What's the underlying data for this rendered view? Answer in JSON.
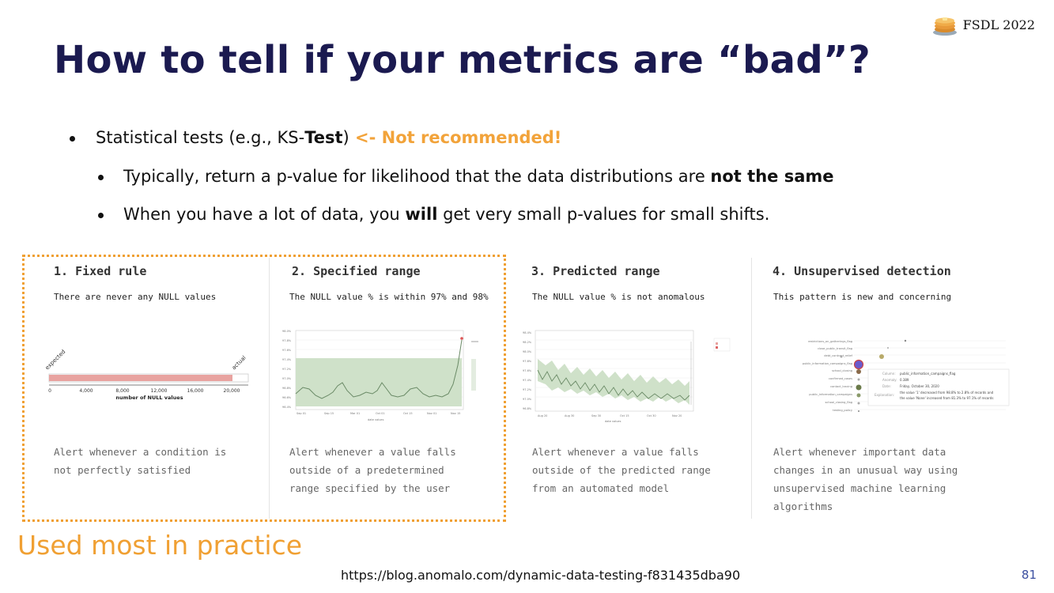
{
  "brand": {
    "label": "FSDL 2022",
    "icon": "pancake-stack-icon"
  },
  "title": "How to tell if your metrics are “bad”?",
  "bullets": {
    "b1": {
      "pre": "Statistical tests (e.g., KS-",
      "bold": "Test",
      "post": ")",
      "warn": " <- Not recommended!"
    },
    "b2": {
      "pre": "Typically, return a p-value for likelihood that the data distributions are ",
      "bold": "not the same"
    },
    "b3": {
      "pre": "When you have a lot of data, you ",
      "bold": "will",
      "post": " get very small p-values for small shifts."
    }
  },
  "columns": [
    {
      "title": "1. Fixed rule",
      "subtitle": "There are never any NULL values",
      "desc": [
        "Alert whenever a condition is",
        "not perfectly satisfied"
      ]
    },
    {
      "title": "2. Specified range",
      "subtitle": "The NULL value % is within 97% and 98%",
      "desc": [
        "Alert whenever a value falls",
        "outside of a predetermined",
        "range specified by the user"
      ]
    },
    {
      "title": "3. Predicted range",
      "subtitle": "The NULL value % is not anomalous",
      "desc": [
        "Alert whenever a value falls",
        "outside of the predicted range",
        "from an automated model"
      ]
    },
    {
      "title": "4. Unsupervised detection",
      "subtitle": "This pattern is new and concerning",
      "desc": [
        "Alert whenever important data",
        "changes in an unusual way using",
        "unsupervised machine learning",
        "algorithms"
      ]
    }
  ],
  "fixed_rule_chart": {
    "expected_label": "expected",
    "actual_label": "actual",
    "ticks": [
      "0",
      "4,000",
      "8,000",
      "12,000",
      "16,000",
      "20,000"
    ],
    "xlabel": "number of NULL values"
  },
  "used_most": "Used most in practice",
  "source": "https://blog.anomalo.com/dynamic-data-testing-f831435dba90",
  "page_number": "81",
  "colors": {
    "title": "#1b1a50",
    "accent": "#f0a033",
    "bar": "#e8a3a0",
    "band": "#cfe1c9"
  }
}
